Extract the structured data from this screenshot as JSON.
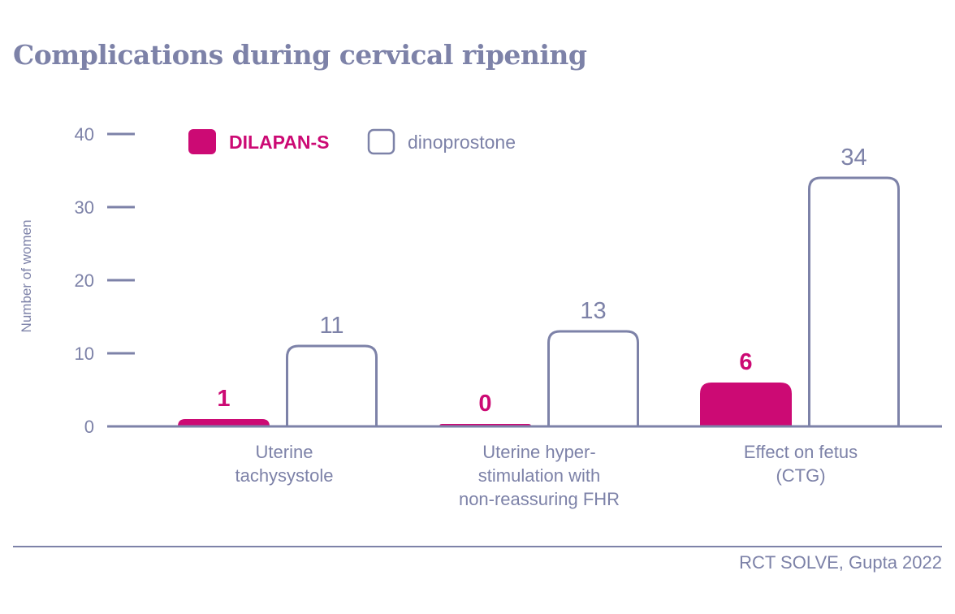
{
  "chart_data": {
    "type": "bar",
    "title": "Complications during cervical ripening",
    "ylabel": "Number of women",
    "xlabel": "",
    "ylim": [
      0,
      40
    ],
    "yticks": [
      0,
      10,
      20,
      30,
      40
    ],
    "categories": [
      [
        "Uterine",
        "tachysystole"
      ],
      [
        "Uterine hyper-",
        "stimulation with",
        "non-reassuring FHR"
      ],
      [
        "Effect on fetus",
        "(CTG)"
      ]
    ],
    "series": [
      {
        "name": "DILAPAN-S",
        "values": [
          1,
          0,
          6
        ],
        "color": "#cc0a74",
        "style": "filled"
      },
      {
        "name": "dinoprostone",
        "values": [
          11,
          13,
          34
        ],
        "color": "#7d82a8",
        "style": "outline"
      }
    ],
    "legend": "top-left",
    "grid": false
  },
  "footer": {
    "source": "RCT SOLVE, Gupta 2022"
  },
  "colors": {
    "primary": "#cc0a74",
    "secondary": "#7d82a8"
  }
}
